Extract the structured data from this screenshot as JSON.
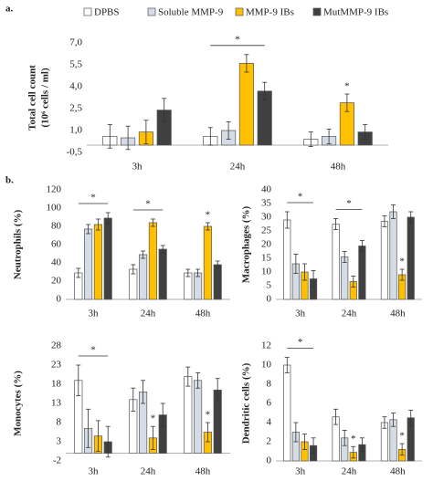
{
  "panel_labels": [
    "a.",
    "b."
  ],
  "legend": [
    {
      "name": "DPBS",
      "color": "#ffffff"
    },
    {
      "name": "Soluble MMP-9",
      "color": "#d6dce5"
    },
    {
      "name": "MMP-9 IBs",
      "color": "#ffc000"
    },
    {
      "name": "MutMMP-9 IBs",
      "color": "#404040"
    }
  ],
  "chart_data": [
    {
      "type": "bar",
      "ylabel": [
        "Total cell count",
        "(10⁶ cells / ml)"
      ],
      "categories": [
        "3h",
        "24h",
        "48h"
      ],
      "ylim": [
        -0.5,
        7
      ],
      "yticks": [
        {
          "value": -0.5,
          "label": "-0,5"
        },
        {
          "value": 1,
          "label": "1,0"
        },
        {
          "value": 2.5,
          "label": "2,5"
        },
        {
          "value": 4,
          "label": "4,0"
        },
        {
          "value": 5.5,
          "label": "5,5"
        },
        {
          "value": 7,
          "label": "7,0"
        }
      ],
      "series": [
        {
          "values": [
            0.6,
            0.6,
            0.4
          ],
          "errors": [
            0.8,
            0.6,
            0.5
          ]
        },
        {
          "values": [
            0.5,
            1.0,
            0.6
          ],
          "errors": [
            0.8,
            0.6,
            0.5
          ]
        },
        {
          "values": [
            0.9,
            5.6,
            2.9
          ],
          "errors": [
            0.8,
            0.6,
            0.6
          ]
        },
        {
          "values": [
            2.4,
            3.7,
            0.9
          ],
          "errors": [
            0.8,
            0.6,
            0.5
          ]
        }
      ],
      "annotations": [
        {
          "text": "*",
          "category": 1,
          "from_series": 0,
          "to_series": 3
        },
        {
          "text": "*",
          "category": 2,
          "series": 2
        }
      ]
    },
    {
      "type": "bar",
      "ylabel": "Neutrophils (%)",
      "categories": [
        "3h",
        "24h",
        "48h"
      ],
      "ylim": [
        0,
        120
      ],
      "yticks": [
        0,
        20,
        40,
        60,
        80,
        100,
        120
      ],
      "series": [
        {
          "values": [
            29,
            33,
            29
          ],
          "errors": [
            5,
            5,
            4
          ]
        },
        {
          "values": [
            77,
            49,
            29
          ],
          "errors": [
            5,
            4,
            4
          ]
        },
        {
          "values": [
            82,
            84,
            80
          ],
          "errors": [
            6,
            4,
            4
          ]
        },
        {
          "values": [
            89,
            55,
            38
          ],
          "errors": [
            6,
            4,
            4
          ]
        }
      ],
      "annotations": [
        {
          "text": "*",
          "category": 0,
          "from_series": 0,
          "to_series": 3
        },
        {
          "text": "*",
          "category": 1,
          "from_series": 0,
          "to_series": 3
        },
        {
          "text": "*",
          "category": 2,
          "series": 2
        }
      ]
    },
    {
      "type": "bar",
      "ylabel": "Macrophages (%)",
      "categories": [
        "3h",
        "24h",
        "48h"
      ],
      "ylim": [
        0,
        40
      ],
      "yticks": [
        0,
        5,
        10,
        15,
        20,
        25,
        30,
        35,
        40
      ],
      "series": [
        {
          "values": [
            29,
            27.5,
            28.5
          ],
          "errors": [
            3,
            2,
            2
          ]
        },
        {
          "values": [
            13,
            15.5,
            32
          ],
          "errors": [
            3.5,
            2,
            2.5
          ]
        },
        {
          "values": [
            10,
            6.5,
            9
          ],
          "errors": [
            3,
            2,
            2
          ]
        },
        {
          "values": [
            7.5,
            19.5,
            30
          ],
          "errors": [
            3,
            2,
            2
          ]
        }
      ],
      "annotations": [
        {
          "text": "*",
          "category": 0,
          "from_series": 0,
          "to_series": 3
        },
        {
          "text": "*",
          "category": 1,
          "from_series": 0,
          "to_series": 3
        },
        {
          "text": "*",
          "category": 2,
          "series": 2
        }
      ]
    },
    {
      "type": "bar",
      "ylabel": "Monocytes (%)",
      "categories": [
        "3h",
        "24h",
        "48h"
      ],
      "ylim": [
        -2,
        28
      ],
      "yticks": [
        -2,
        3,
        8,
        13,
        18,
        23,
        28
      ],
      "series": [
        {
          "values": [
            19,
            14,
            20
          ],
          "errors": [
            4,
            3,
            2.5
          ]
        },
        {
          "values": [
            6.5,
            16,
            19
          ],
          "errors": [
            5,
            3,
            2
          ]
        },
        {
          "values": [
            4.5,
            4,
            5.5
          ],
          "errors": [
            4,
            3,
            2.5
          ]
        },
        {
          "values": [
            3,
            10,
            16.5
          ],
          "errors": [
            4,
            3,
            3
          ]
        }
      ],
      "annotations": [
        {
          "text": "*",
          "category": 0,
          "from_series": 0,
          "to_series": 3
        },
        {
          "text": "*",
          "category": 1,
          "series": 2
        },
        {
          "text": "*",
          "category": 2,
          "series": 2
        }
      ]
    },
    {
      "type": "bar",
      "ylabel": "Dendritic cells (%)",
      "categories": [
        "3h",
        "24h",
        "48h"
      ],
      "ylim": [
        0,
        12
      ],
      "yticks": [
        0,
        2,
        4,
        6,
        8,
        10,
        12
      ],
      "series": [
        {
          "values": [
            10,
            4.6,
            4
          ],
          "errors": [
            0.8,
            0.8,
            0.6
          ]
        },
        {
          "values": [
            3,
            2.4,
            4.3
          ],
          "errors": [
            1,
            0.8,
            0.7
          ]
        },
        {
          "values": [
            2,
            0.9,
            1.2
          ],
          "errors": [
            0.8,
            0.6,
            0.6
          ]
        },
        {
          "values": [
            1.6,
            1.7,
            4.5
          ],
          "errors": [
            0.8,
            0.7,
            0.8
          ]
        }
      ],
      "annotations": [
        {
          "text": "*",
          "category": 0,
          "from_series": 0,
          "to_series": 3
        },
        {
          "text": "*",
          "category": 1,
          "series": 2
        },
        {
          "text": "*",
          "category": 2,
          "series": 2
        }
      ]
    }
  ]
}
